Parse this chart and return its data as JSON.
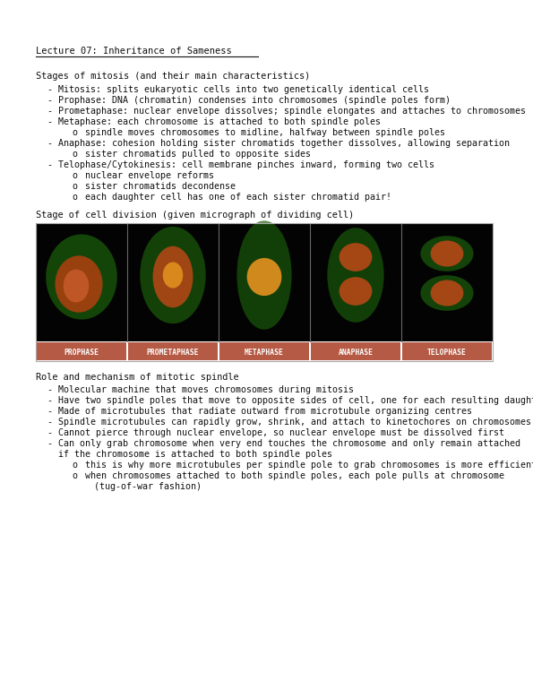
{
  "title": "Lecture 07: Inheritance of Sameness",
  "bg_color": "#ffffff",
  "text_color": "#111111",
  "sections": [
    {
      "heading": "Stages of mitosis (and their main characteristics)",
      "bullets": [
        {
          "level": 1,
          "text": "Mitosis: splits eukaryotic cells into two genetically identical cells"
        },
        {
          "level": 1,
          "text": "Prophase: DNA (chromatin) condenses into chromosomes (spindle poles form)"
        },
        {
          "level": 1,
          "text": "Prometaphase: nuclear envelope dissolves; spindle elongates and attaches to chromosomes"
        },
        {
          "level": 1,
          "text": "Metaphase: each chromosome is attached to both spindle poles"
        },
        {
          "level": 2,
          "text": "spindle moves chromosomes to midline, halfway between spindle poles"
        },
        {
          "level": 1,
          "text": "Anaphase: cohesion holding sister chromatids together dissolves, allowing separation"
        },
        {
          "level": 2,
          "text": "sister chromatids pulled to opposite sides"
        },
        {
          "level": 1,
          "text": "Telophase/Cytokinesis: cell membrane pinches inward, forming two cells"
        },
        {
          "level": 2,
          "text": "nuclear envelope reforms"
        },
        {
          "level": 2,
          "text": "sister chromatids decondense"
        },
        {
          "level": 2,
          "text": "each daughter cell has one of each sister chromatid pair!"
        }
      ]
    }
  ],
  "image_caption": "Stage of cell division (given micrograph of dividing cell)",
  "image_labels": [
    "PROPHASE",
    "PROMETAPHASE",
    "METAPHASE",
    "ANAPHASE",
    "TELOPHASE"
  ],
  "label_bg_color": "#b55a45",
  "label_text_color": "#ffffff",
  "section2_heading": "Role and mechanism of mitotic spindle",
  "section2_bullets": [
    {
      "level": 1,
      "text": "Molecular machine that moves chromosomes during mitosis"
    },
    {
      "level": 1,
      "text": "Have two spindle poles that move to opposite sides of cell, one for each resulting daughter cells"
    },
    {
      "level": 1,
      "text": "Made of microtubules that radiate outward from microtubule organizing centres"
    },
    {
      "level": 1,
      "text": "Spindle microtubules can rapidly grow, shrink, and attach to kinetochores on chromosomes"
    },
    {
      "level": 1,
      "text": "Cannot pierce through nuclear envelope, so nuclear envelope must be dissolved first"
    },
    {
      "level": 1,
      "text": "Can only grab chromosome when very end touches the chromosome and only remain attached"
    },
    {
      "level": 0,
      "text": "if the chromosome is attached to both spindle poles"
    },
    {
      "level": 2,
      "text": "this is why more microtubules per spindle pole to grab chromosomes is more efficient"
    },
    {
      "level": 2,
      "text": "when chromosomes attached to both spindle poles, each pole pulls at chromosome"
    },
    {
      "level": 3,
      "text": "(tug-of-war fashion)"
    }
  ]
}
